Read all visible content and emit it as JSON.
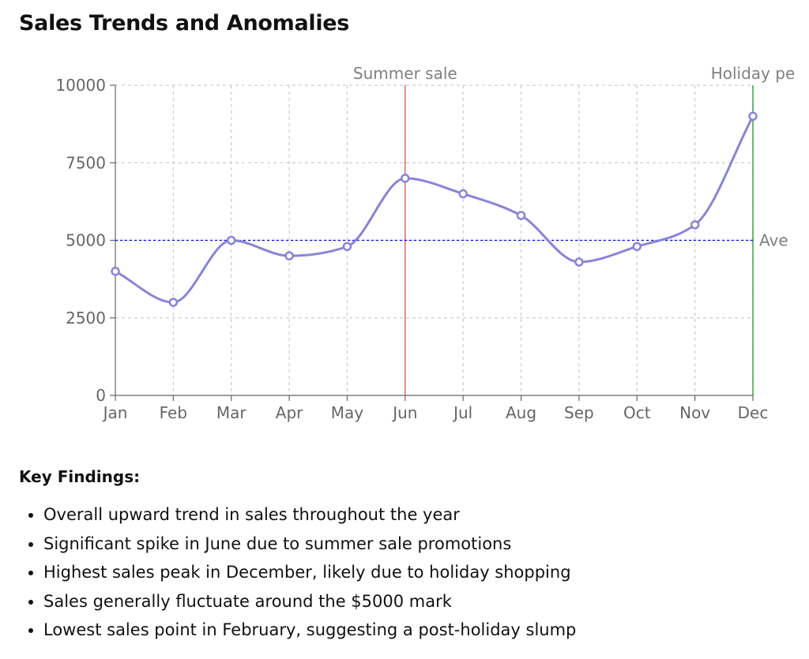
{
  "chart_data": {
    "type": "line",
    "title": "Sales Trends and Anomalies",
    "xlabel": "",
    "ylabel": "",
    "categories": [
      "Jan",
      "Feb",
      "Mar",
      "Apr",
      "May",
      "Jun",
      "Jul",
      "Aug",
      "Sep",
      "Oct",
      "Nov",
      "Dec"
    ],
    "series": [
      {
        "name": "Sales",
        "values": [
          4000,
          3000,
          5000,
          4500,
          4800,
          7000,
          6500,
          5800,
          4300,
          4800,
          5500,
          9000
        ],
        "color": "#8884d8"
      }
    ],
    "ylim": [
      0,
      10000
    ],
    "yticks": [
      0,
      2500,
      5000,
      7500,
      10000
    ],
    "grid": true,
    "legend": "none",
    "reference_lines": [
      {
        "axis": "x",
        "value": "Jun",
        "label": "Summer sale",
        "color": "#e05050"
      },
      {
        "axis": "x",
        "value": "Dec",
        "label": "Holiday pe",
        "color": "#2e8b2e"
      },
      {
        "axis": "y",
        "value": 5000,
        "label": "Ave",
        "color": "#0000ee"
      }
    ]
  },
  "findings": {
    "title": "Key Findings:",
    "items": [
      "Overall upward trend in sales throughout the year",
      "Significant spike in June due to summer sale promotions",
      "Highest sales peak in December, likely due to holiday shopping",
      "Sales generally fluctuate around the $5000 mark",
      "Lowest sales point in February, suggesting a post-holiday slump"
    ]
  }
}
